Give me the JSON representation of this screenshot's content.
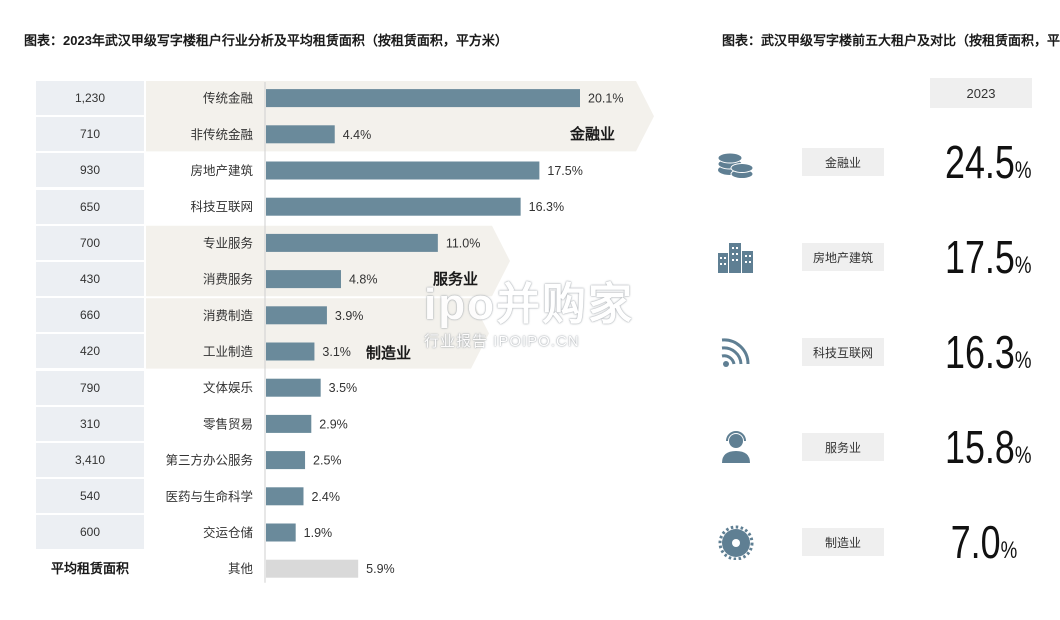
{
  "left_title": "图表：2023年武汉甲级写字楼租户行业分析及平均租赁面积（按租赁面积，平方米）",
  "right_title": "图表：武汉甲级写字楼前五大租户及对比（按租赁面积，平方米）",
  "area_label": "平均租赁面积",
  "groups": [
    {
      "label": "金融业",
      "rows": [
        0,
        1
      ]
    },
    {
      "label": "服务业",
      "rows": [
        4,
        5
      ]
    },
    {
      "label": "制造业",
      "rows": [
        6,
        7
      ]
    }
  ],
  "chart_data": {
    "type": "bar",
    "orientation": "horizontal",
    "categories": [
      "传统金融",
      "非传统金融",
      "房地产建筑",
      "科技互联网",
      "专业服务",
      "消费服务",
      "消费制造",
      "工业制造",
      "文体娱乐",
      "零售贸易",
      "第三方办公服务",
      "医药与生命科学",
      "交运仓储",
      "其他"
    ],
    "values": [
      20.1,
      4.4,
      17.5,
      16.3,
      11.0,
      4.8,
      3.9,
      3.1,
      3.5,
      2.9,
      2.5,
      2.4,
      1.9,
      5.9
    ],
    "value_labels": [
      "20.1%",
      "4.4%",
      "17.5%",
      "16.3%",
      "11.0%",
      "4.8%",
      "3.9%",
      "3.1%",
      "3.5%",
      "2.9%",
      "2.5%",
      "2.4%",
      "1.9%",
      "5.9%"
    ],
    "average_area": [
      "1,230",
      "710",
      "930",
      "650",
      "700",
      "430",
      "660",
      "420",
      "790",
      "310",
      "3,410",
      "540",
      "600",
      ""
    ],
    "bar_color": "#6a8a9b",
    "other_bar_color": "#d9d9d9",
    "xlim": [
      0,
      20.1
    ]
  },
  "top5": {
    "year": "2023",
    "rows": [
      {
        "icon": "coins-icon",
        "label": "金融业",
        "value": "24.5",
        "unit": "%"
      },
      {
        "icon": "buildings-icon",
        "label": "房地产建筑",
        "value": "17.5",
        "unit": "%"
      },
      {
        "icon": "wifi-icon",
        "label": "科技互联网",
        "value": "16.3",
        "unit": "%"
      },
      {
        "icon": "support-agent-icon",
        "label": "服务业",
        "value": "15.8",
        "unit": "%"
      },
      {
        "icon": "gear-icon",
        "label": "制造业",
        "value": "7.0",
        "unit": "%"
      }
    ],
    "icon_color": "#5f7f93"
  },
  "watermark": {
    "main": "ipo并购家",
    "sub": "行业报告 IPOIPO.CN"
  }
}
